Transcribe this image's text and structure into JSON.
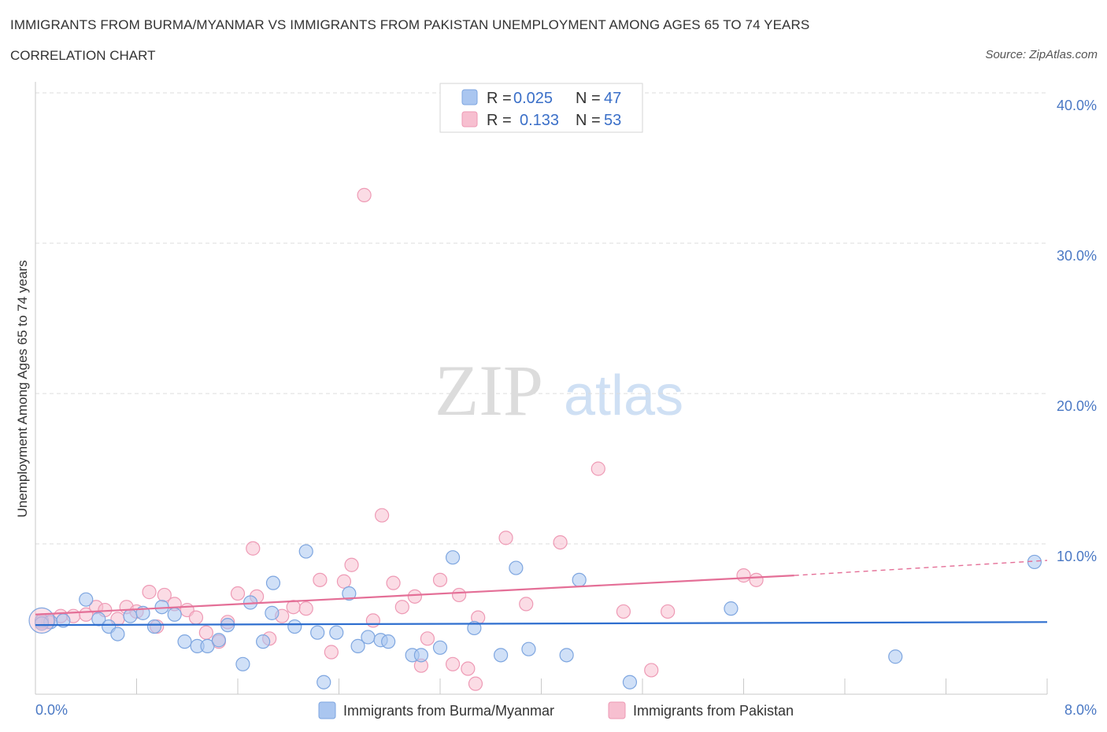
{
  "header": {
    "title": "IMMIGRANTS FROM BURMA/MYANMAR VS IMMIGRANTS FROM PAKISTAN UNEMPLOYMENT AMONG AGES 65 TO 74 YEARS",
    "subtitle": "CORRELATION CHART",
    "source": "Source: ZipAtlas.com"
  },
  "watermark": {
    "zip": "ZIP",
    "atlas": "atlas"
  },
  "colors": {
    "blue_fill": "#aac6f0",
    "blue_stroke": "#7ea6e0",
    "blue_line": "#2f6fcf",
    "pink_fill": "#f7bfd0",
    "pink_stroke": "#ee9ab5",
    "pink_line": "#e46f97",
    "grid": "#dddddd",
    "tick_text": "#4a78c4"
  },
  "legend_box": {
    "rows": [
      {
        "r_label": "R =",
        "r_value": "0.025",
        "n_label": "N =",
        "n_value": "47"
      },
      {
        "r_label": "R =",
        "r_value": "0.133",
        "n_label": "N =",
        "n_value": "53"
      }
    ]
  },
  "chart_data": {
    "type": "scatter",
    "title": "IMMIGRANTS FROM BURMA/MYANMAR VS IMMIGRANTS FROM PAKISTAN UNEMPLOYMENT AMONG AGES 65 TO 74 YEARS",
    "xlabel": "",
    "ylabel": "Unemployment Among Ages 65 to 74 years",
    "xlim": [
      0,
      8
    ],
    "ylim": [
      0,
      40
    ],
    "x_tick_labels": [
      "0.0%",
      "8.0%"
    ],
    "y_ticks": [
      10,
      20,
      30,
      40
    ],
    "y_tick_labels": [
      "10.0%",
      "20.0%",
      "30.0%",
      "40.0%"
    ],
    "grid": true,
    "series": [
      {
        "name": "Immigrants from Burma/Myanmar",
        "color": "blue",
        "R": 0.025,
        "N": 47,
        "trend": {
          "x": [
            0.0,
            8.0
          ],
          "y": [
            4.6,
            4.8
          ]
        },
        "points": [
          [
            0.05,
            4.9
          ],
          [
            0.12,
            4.8
          ],
          [
            0.22,
            4.9
          ],
          [
            0.4,
            6.3
          ],
          [
            0.5,
            5.0
          ],
          [
            0.58,
            4.5
          ],
          [
            0.65,
            4.0
          ],
          [
            0.75,
            5.2
          ],
          [
            0.85,
            5.4
          ],
          [
            0.94,
            4.5
          ],
          [
            1.0,
            5.8
          ],
          [
            1.1,
            5.3
          ],
          [
            1.18,
            3.5
          ],
          [
            1.28,
            3.2
          ],
          [
            1.36,
            3.2
          ],
          [
            1.45,
            3.6
          ],
          [
            1.52,
            4.6
          ],
          [
            1.64,
            2.0
          ],
          [
            1.7,
            6.1
          ],
          [
            1.8,
            3.5
          ],
          [
            1.88,
            7.4
          ],
          [
            1.87,
            5.4
          ],
          [
            2.05,
            4.5
          ],
          [
            2.14,
            9.5
          ],
          [
            2.23,
            4.1
          ],
          [
            2.28,
            0.8
          ],
          [
            2.38,
            4.1
          ],
          [
            2.48,
            6.7
          ],
          [
            2.55,
            3.2
          ],
          [
            2.63,
            3.8
          ],
          [
            2.73,
            3.6
          ],
          [
            2.79,
            3.5
          ],
          [
            2.98,
            2.6
          ],
          [
            3.05,
            2.6
          ],
          [
            3.2,
            3.1
          ],
          [
            3.3,
            9.1
          ],
          [
            3.47,
            4.4
          ],
          [
            3.68,
            2.6
          ],
          [
            3.8,
            8.4
          ],
          [
            3.9,
            3.0
          ],
          [
            4.2,
            2.6
          ],
          [
            4.3,
            7.6
          ],
          [
            4.7,
            0.8
          ],
          [
            5.5,
            5.7
          ],
          [
            6.8,
            2.5
          ],
          [
            7.9,
            8.8
          ],
          [
            0.05,
            4.7
          ]
        ]
      },
      {
        "name": "Immigrants from Pakistan",
        "color": "pink",
        "R": 0.133,
        "N": 53,
        "trend": {
          "x": [
            0.0,
            6.0
          ],
          "y": [
            5.3,
            7.9
          ]
        },
        "trend_dashed": {
          "x": [
            6.0,
            8.0
          ],
          "y": [
            7.9,
            8.9
          ]
        },
        "points": [
          [
            0.1,
            4.8
          ],
          [
            0.2,
            5.2
          ],
          [
            0.3,
            5.2
          ],
          [
            0.4,
            5.3
          ],
          [
            0.48,
            5.8
          ],
          [
            0.55,
            5.6
          ],
          [
            0.65,
            5.0
          ],
          [
            0.72,
            5.8
          ],
          [
            0.8,
            5.5
          ],
          [
            0.9,
            6.8
          ],
          [
            0.96,
            4.5
          ],
          [
            1.02,
            6.6
          ],
          [
            1.1,
            6.0
          ],
          [
            1.2,
            5.6
          ],
          [
            1.27,
            5.1
          ],
          [
            1.35,
            4.1
          ],
          [
            1.45,
            3.5
          ],
          [
            1.52,
            4.8
          ],
          [
            1.6,
            6.7
          ],
          [
            1.72,
            9.7
          ],
          [
            1.75,
            6.5
          ],
          [
            1.85,
            3.7
          ],
          [
            1.95,
            5.2
          ],
          [
            2.04,
            5.8
          ],
          [
            2.14,
            5.7
          ],
          [
            2.25,
            7.6
          ],
          [
            2.34,
            2.8
          ],
          [
            2.44,
            7.5
          ],
          [
            2.5,
            8.6
          ],
          [
            2.6,
            33.2
          ],
          [
            2.67,
            4.9
          ],
          [
            2.74,
            11.9
          ],
          [
            2.83,
            7.4
          ],
          [
            2.9,
            5.8
          ],
          [
            3.0,
            6.5
          ],
          [
            3.05,
            1.9
          ],
          [
            3.1,
            3.7
          ],
          [
            3.2,
            7.6
          ],
          [
            3.3,
            2.0
          ],
          [
            3.35,
            6.6
          ],
          [
            3.42,
            1.7
          ],
          [
            3.48,
            0.7
          ],
          [
            3.5,
            5.1
          ],
          [
            3.72,
            10.4
          ],
          [
            3.88,
            6.0
          ],
          [
            4.15,
            10.1
          ],
          [
            4.45,
            15.0
          ],
          [
            4.65,
            5.5
          ],
          [
            4.87,
            1.6
          ],
          [
            5.0,
            5.5
          ],
          [
            5.6,
            7.9
          ],
          [
            5.7,
            7.6
          ],
          [
            0.05,
            4.8
          ]
        ]
      }
    ]
  },
  "bottom_legend": {
    "items": [
      {
        "label": "Immigrants from Burma/Myanmar"
      },
      {
        "label": "Immigrants from Pakistan"
      }
    ]
  }
}
